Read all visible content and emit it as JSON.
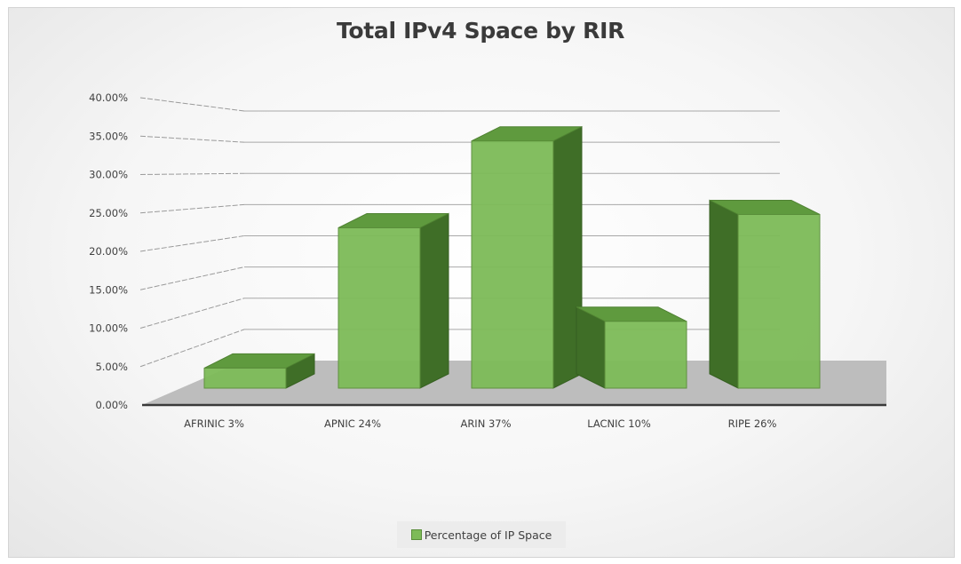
{
  "chart_data": {
    "type": "bar",
    "style": "3d-column",
    "title": "Total IPv4 Space by RIR",
    "xlabel": "",
    "ylabel": "",
    "categories": [
      "AFRINIC  3%",
      "APNIC 24%",
      "ARIN  37%",
      "LACNIC  10%",
      "RIPE  26%"
    ],
    "series": [
      {
        "name": "Percentage of IP Space",
        "values": [
          0.03,
          0.24,
          0.37,
          0.1,
          0.26
        ],
        "color": "#7dbb58"
      }
    ],
    "yticks": [
      "0.00%",
      "5.00%",
      "10.00%",
      "15.00%",
      "20.00%",
      "25.00%",
      "30.00%",
      "35.00%",
      "40.00%"
    ],
    "ylim": [
      0,
      0.4
    ],
    "grid": true,
    "legend_position": "bottom"
  },
  "legend": {
    "label": "Percentage of IP Space"
  },
  "colors": {
    "bar_front": "#7dbb58",
    "bar_top": "#5f9a3e",
    "bar_side": "#3f6e27",
    "floor": "#bdbdbd",
    "baseline": "#3a3a3a"
  }
}
